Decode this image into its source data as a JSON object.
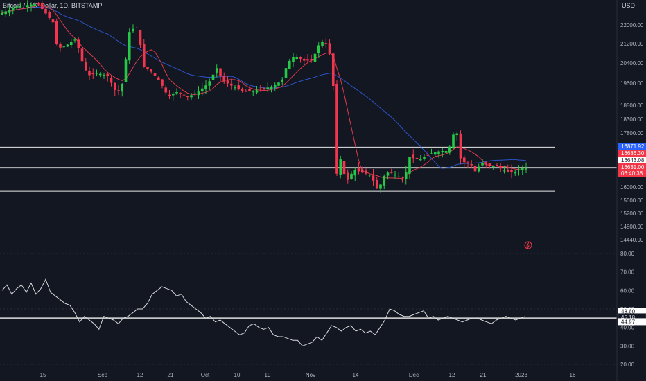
{
  "header": {
    "symbol_title": "Bitcoin / U.S. Dollar, 1D, BITSTAMP",
    "currency": "USD"
  },
  "colors": {
    "background": "#131722",
    "up": "#26c947",
    "down": "#f2364f",
    "ma_fast": "#e23b4b",
    "ma_slow": "#2b55c9",
    "grid": "#363a45",
    "text": "#b2b5be",
    "level_line": "#e8e8e8"
  },
  "chart_data": [
    {
      "type": "candlestick",
      "title": "Bitcoin / U.S. Dollar, 1D, BITSTAMP",
      "x_ticks": [
        "15",
        "Sep",
        "12",
        "21",
        "Oct",
        "10",
        "19",
        "Nov",
        "14",
        "Dec",
        "12",
        "21",
        "2023",
        "16"
      ],
      "y_ticks": [
        22000,
        21200,
        20400,
        19600,
        18800,
        18300,
        17800,
        16000,
        15600,
        15200,
        14800,
        14440
      ],
      "series": [
        {
          "name": "",
          "kind": "candles",
          "note": "daily OHLC candles (approximate)"
        },
        {
          "name": "",
          "kind": "ma_fast"
        },
        {
          "name": "",
          "kind": "ma_slow"
        }
      ],
      "horizontal_levels": [
        17330,
        16643.08,
        15870
      ],
      "price_labels": [
        {
          "text": "16871.92",
          "value": 16871.92,
          "color": "#2962ff",
          "text_color": "#ffffff"
        },
        {
          "text": "16686.30",
          "value": 16686.3,
          "color": "#f23645",
          "text_color": "#ffffff"
        },
        {
          "text": "16643.08",
          "value": 16643.08,
          "color": "#ffffff",
          "text_color": "#131722"
        },
        {
          "text": "16631.00",
          "value": 16631.0,
          "color": "#f23645",
          "text_color": "#ffffff"
        },
        {
          "text": "06:40:38",
          "value": 16540,
          "color": "#f23645",
          "text_color": "#ffffff"
        }
      ]
    },
    {
      "type": "line",
      "title": "",
      "y_ticks": [
        80,
        70,
        60,
        50,
        40,
        30,
        20
      ],
      "ylim": [
        20,
        80
      ],
      "levels": [
        45.18,
        44.97
      ],
      "value_labels": [
        {
          "text": "48.60",
          "value": 48.6,
          "color": "#ffffff",
          "text_color": "#131722"
        },
        {
          "text": "45.18",
          "value": 45.18,
          "color": "#131722",
          "text_color": "#d1d4dc"
        },
        {
          "text": "44.97",
          "value": 44.97,
          "color": "#ffffff",
          "text_color": "#131722"
        }
      ],
      "series": [
        {
          "name": "",
          "values": [
            60,
            63,
            58,
            61,
            63,
            59,
            64,
            58,
            61,
            66,
            59,
            57,
            55,
            53,
            52,
            48,
            43,
            46,
            44,
            42,
            39,
            46,
            45,
            44,
            42,
            45,
            46,
            48,
            50,
            50,
            53,
            58,
            60,
            62,
            61,
            60,
            57,
            58,
            54,
            52,
            50,
            48,
            45,
            46,
            43,
            44,
            42,
            40,
            38,
            36,
            37,
            41,
            42,
            40,
            39,
            40,
            36,
            35,
            35,
            34,
            33,
            33,
            30,
            31,
            32,
            35,
            33,
            37,
            41,
            40,
            38,
            40,
            41,
            38,
            39,
            37,
            38,
            36,
            40,
            44,
            50,
            49,
            47,
            46,
            46,
            47,
            48,
            49,
            45,
            46,
            44,
            45,
            46,
            45,
            44,
            43,
            44,
            45,
            45,
            44,
            43,
            42,
            44,
            45,
            46,
            45,
            44,
            45,
            46
          ]
        }
      ]
    }
  ]
}
